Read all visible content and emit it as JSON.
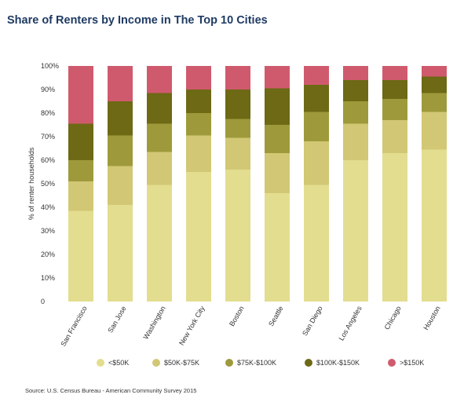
{
  "header": {
    "title": "Share of Renters by Income in The Top 10 Cities"
  },
  "footer": {
    "source": "Source: U.S. Census Bureau - American Community Survey 2015"
  },
  "chart_data": {
    "type": "bar",
    "stacked": true,
    "title": "Share of Renters by Income in The Top 10 Cities",
    "xlabel": "",
    "ylabel": "% of renter households",
    "ylim": [
      0,
      100
    ],
    "y_ticks": [
      "0",
      "10%",
      "20%",
      "30%",
      "40%",
      "50%",
      "60%",
      "70%",
      "80%",
      "90%",
      "100%"
    ],
    "grid": false,
    "legend_position": "bottom",
    "categories": [
      "San Francisco",
      "San Jose",
      "Washington",
      "New York City",
      "Boston",
      "Seattle",
      "San Diego",
      "Los Angeles",
      "Chicago",
      "Houston"
    ],
    "series": [
      {
        "name": "<$50K",
        "color": "#e3dd8f",
        "values": [
          38.5,
          41,
          49.5,
          55,
          56,
          46,
          49.5,
          60,
          63,
          64.5
        ]
      },
      {
        "name": "$50K-$75K",
        "color": "#d2c774",
        "values": [
          12.5,
          16.5,
          14,
          15.5,
          13.5,
          17,
          18.5,
          15.5,
          14,
          16
        ]
      },
      {
        "name": "$75K-$100K",
        "color": "#9e9a3b",
        "values": [
          9,
          13,
          12,
          9.5,
          8,
          12,
          12.5,
          9.5,
          9,
          8
        ]
      },
      {
        "name": "$100K-$150K",
        "color": "#6d6915",
        "values": [
          15.5,
          14.5,
          13,
          10,
          12.5,
          15.5,
          11.5,
          9,
          8,
          7
        ]
      },
      {
        "name": ">$150K",
        "color": "#d05a6d",
        "values": [
          24.5,
          15,
          11.5,
          10,
          10,
          9.5,
          8,
          6,
          6,
          4.5
        ]
      }
    ]
  }
}
